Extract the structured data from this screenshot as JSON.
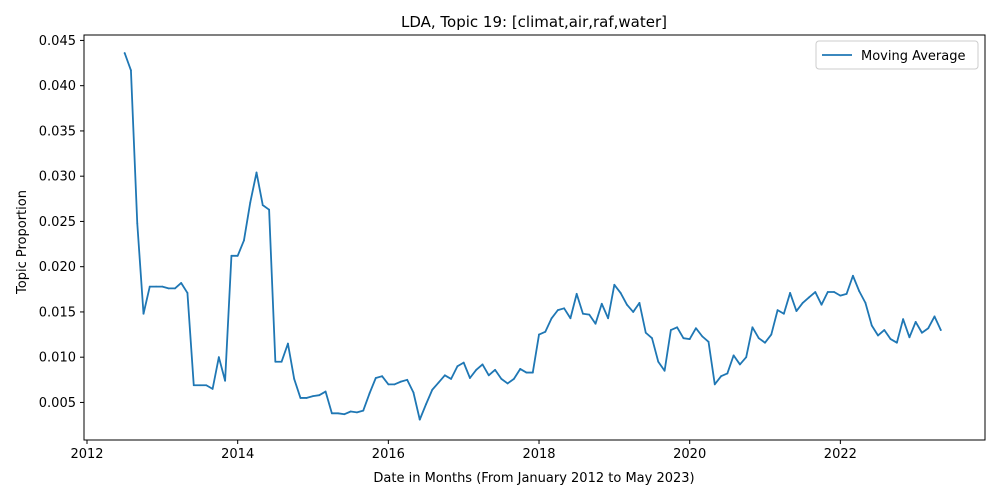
{
  "chart_data": {
    "type": "line",
    "title": "LDA, Topic 19: [climat,air,raf,water]",
    "xlabel": "Date in Months (From January 2012 to May 2023)",
    "ylabel": "Topic Proportion",
    "xlim": [
      2011.96,
      2023.92
    ],
    "ylim": [
      0.00085,
      0.0456
    ],
    "x_ticks": [
      2012,
      2014,
      2016,
      2018,
      2020,
      2022
    ],
    "x_tick_labels": [
      "2012",
      "2014",
      "2016",
      "2018",
      "2020",
      "2022"
    ],
    "y_ticks": [
      0.005,
      0.01,
      0.015,
      0.02,
      0.025,
      0.03,
      0.035,
      0.04,
      0.045
    ],
    "y_tick_labels": [
      "0.005",
      "0.010",
      "0.015",
      "0.020",
      "0.025",
      "0.030",
      "0.035",
      "0.040",
      "0.045"
    ],
    "grid": false,
    "legend_position": "top-right",
    "series": [
      {
        "name": "Moving Average",
        "color": "#1f77b4",
        "x": [
          2012.5,
          2012.583,
          2012.667,
          2012.75,
          2012.833,
          2012.917,
          2013.0,
          2013.083,
          2013.167,
          2013.25,
          2013.333,
          2013.417,
          2013.5,
          2013.583,
          2013.667,
          2013.75,
          2013.833,
          2013.917,
          2014.0,
          2014.083,
          2014.167,
          2014.25,
          2014.333,
          2014.417,
          2014.5,
          2014.583,
          2014.667,
          2014.75,
          2014.833,
          2014.917,
          2015.0,
          2015.083,
          2015.167,
          2015.25,
          2015.333,
          2015.417,
          2015.5,
          2015.583,
          2015.667,
          2015.75,
          2015.833,
          2015.917,
          2016.0,
          2016.083,
          2016.167,
          2016.25,
          2016.333,
          2016.417,
          2016.5,
          2016.583,
          2016.667,
          2016.75,
          2016.833,
          2016.917,
          2017.0,
          2017.083,
          2017.167,
          2017.25,
          2017.333,
          2017.417,
          2017.5,
          2017.583,
          2017.667,
          2017.75,
          2017.833,
          2017.917,
          2018.0,
          2018.083,
          2018.167,
          2018.25,
          2018.333,
          2018.417,
          2018.5,
          2018.583,
          2018.667,
          2018.75,
          2018.833,
          2018.917,
          2019.0,
          2019.083,
          2019.167,
          2019.25,
          2019.333,
          2019.417,
          2019.5,
          2019.583,
          2019.667,
          2019.75,
          2019.833,
          2019.917,
          2020.0,
          2020.083,
          2020.167,
          2020.25,
          2020.333,
          2020.417,
          2020.5,
          2020.583,
          2020.667,
          2020.75,
          2020.833,
          2020.917,
          2021.0,
          2021.083,
          2021.167,
          2021.25,
          2021.333,
          2021.417,
          2021.5,
          2021.583,
          2021.667,
          2021.75,
          2021.833,
          2021.917,
          2022.0,
          2022.083,
          2022.167,
          2022.25,
          2022.333,
          2022.417,
          2022.5,
          2022.583,
          2022.667,
          2022.75,
          2022.833,
          2022.917,
          2023.0,
          2023.083,
          2023.167,
          2023.25,
          2023.333
        ],
        "y": [
          0.0436,
          0.0417,
          0.0248,
          0.0148,
          0.0178,
          0.0178,
          0.0178,
          0.0176,
          0.0176,
          0.0182,
          0.0171,
          0.0069,
          0.0069,
          0.0069,
          0.0065,
          0.01,
          0.0074,
          0.0212,
          0.0212,
          0.0229,
          0.0271,
          0.0304,
          0.0268,
          0.0263,
          0.0095,
          0.0095,
          0.0115,
          0.0076,
          0.0055,
          0.0055,
          0.0057,
          0.0058,
          0.0062,
          0.0038,
          0.0038,
          0.0037,
          0.004,
          0.0039,
          0.0041,
          0.006,
          0.0077,
          0.0079,
          0.007,
          0.007,
          0.0073,
          0.0075,
          0.0061,
          0.0031,
          0.0048,
          0.0064,
          0.0072,
          0.008,
          0.0076,
          0.009,
          0.0094,
          0.0077,
          0.0086,
          0.0092,
          0.008,
          0.0086,
          0.0076,
          0.0071,
          0.0076,
          0.0087,
          0.0083,
          0.0083,
          0.0125,
          0.0128,
          0.0143,
          0.0152,
          0.0154,
          0.0143,
          0.017,
          0.0148,
          0.0147,
          0.0137,
          0.0159,
          0.0143,
          0.018,
          0.0171,
          0.0158,
          0.015,
          0.016,
          0.0127,
          0.0121,
          0.0095,
          0.0085,
          0.013,
          0.0133,
          0.0121,
          0.012,
          0.0132,
          0.0123,
          0.0117,
          0.007,
          0.0079,
          0.0082,
          0.0102,
          0.0092,
          0.01,
          0.0133,
          0.0121,
          0.0116,
          0.0125,
          0.0152,
          0.0148,
          0.0171,
          0.0151,
          0.016,
          0.0166,
          0.0172,
          0.0158,
          0.0172,
          0.0172,
          0.0168,
          0.017,
          0.019,
          0.0173,
          0.016,
          0.0135,
          0.0124,
          0.013,
          0.012,
          0.0116,
          0.0142,
          0.0122,
          0.0139,
          0.0127,
          0.0132,
          0.0145,
          0.013
        ]
      }
    ]
  }
}
